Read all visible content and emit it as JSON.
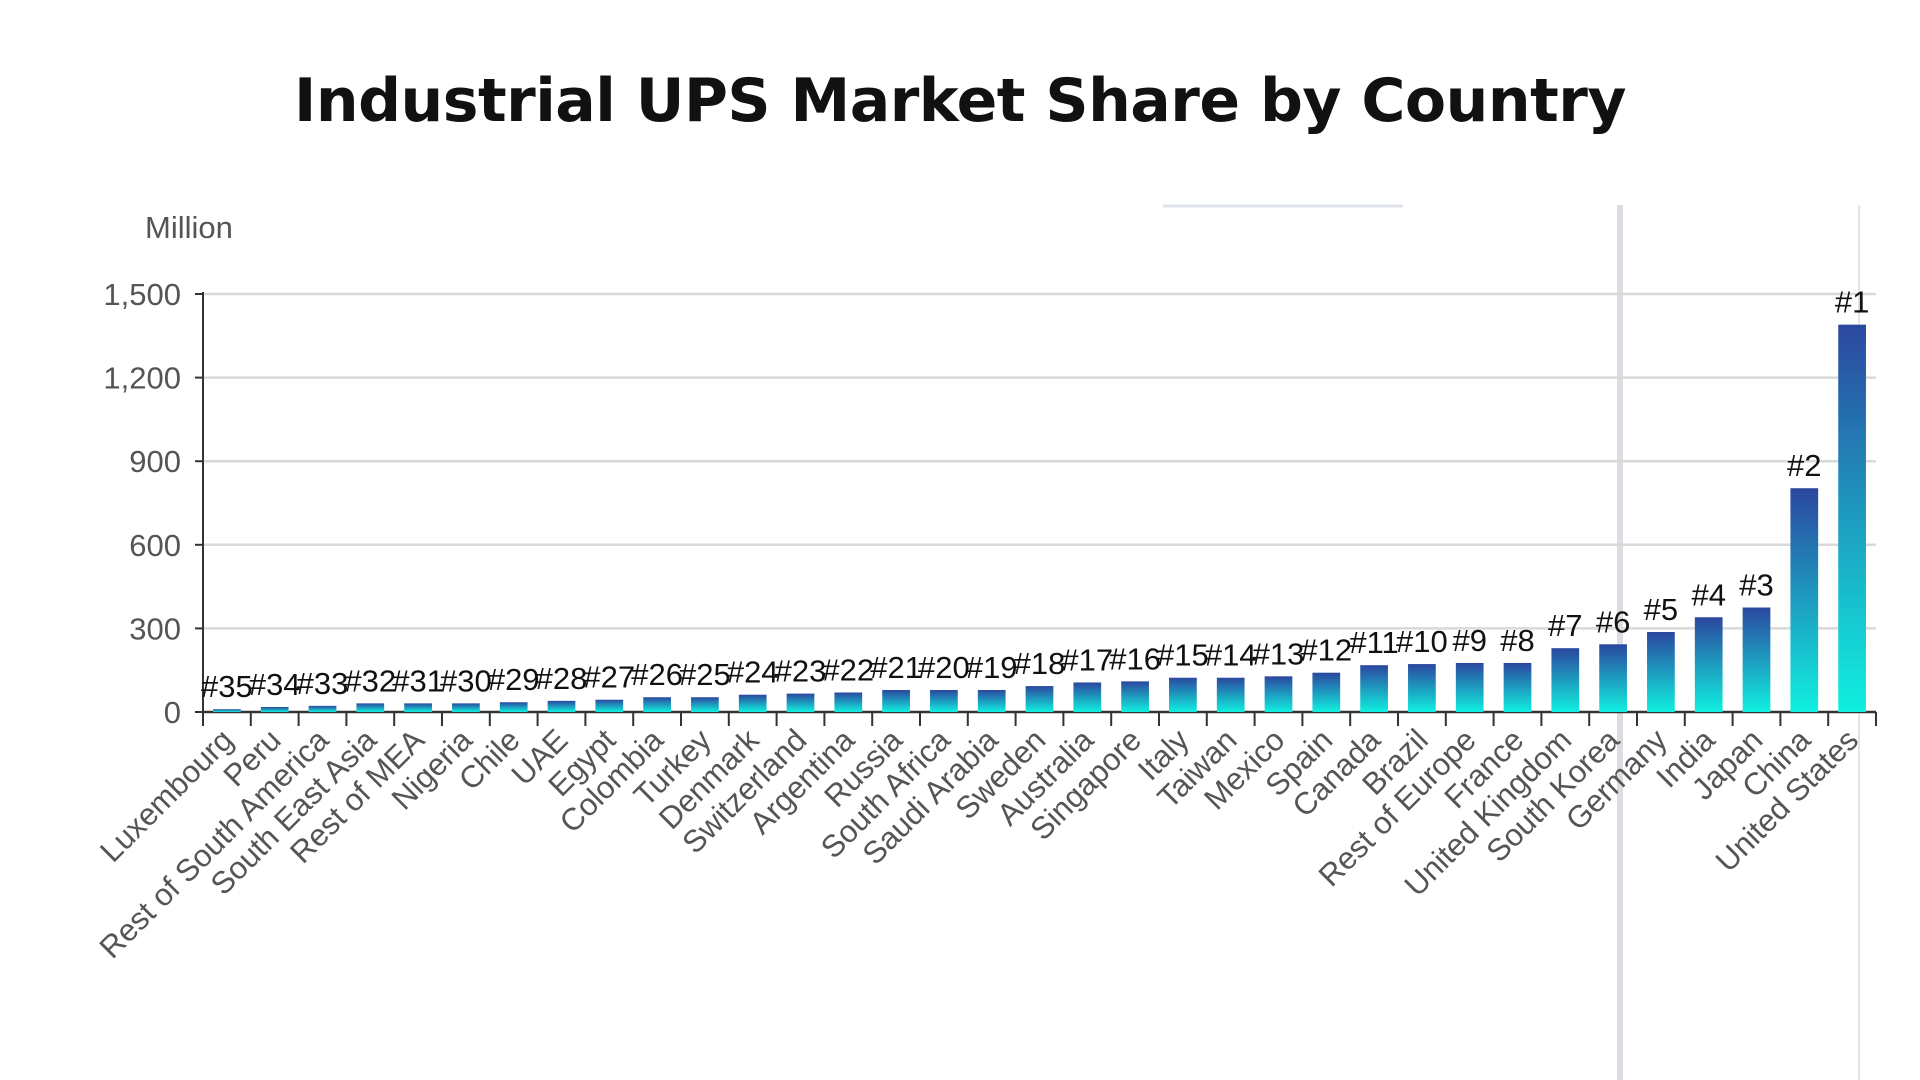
{
  "chart_data": {
    "type": "bar",
    "title": "Industrial UPS Market Share by Country",
    "ylabel": "Million",
    "xlabel": "",
    "ylim": [
      0,
      1500
    ],
    "yticks": [
      0,
      300,
      600,
      900,
      1200,
      1500
    ],
    "ytick_labels": [
      "0",
      "300",
      "600",
      "900",
      "1,200",
      "1,500"
    ],
    "grid": true,
    "categories": [
      "Luxembourg",
      "Peru",
      "Rest of South America",
      "South East Asia",
      "Rest of MEA",
      "Nigeria",
      "Chile",
      "UAE",
      "Egypt",
      "Colombia",
      "Turkey",
      "Denmark",
      "Switzerland",
      "Argentina",
      "Russia",
      "South Africa",
      "Saudi Arabia",
      "Sweden",
      "Australia",
      "Singapore",
      "Italy",
      "Taiwan",
      "Mexico",
      "Spain",
      "Canada",
      "Brazil",
      "Rest of Europe",
      "France",
      "United Kingdom",
      "South Korea",
      "Germany",
      "India",
      "Japan",
      "China",
      "United States"
    ],
    "values": [
      10,
      18,
      22,
      31,
      31,
      31,
      35,
      40,
      44,
      53,
      53,
      62,
      66,
      70,
      79,
      79,
      79,
      93,
      106,
      110,
      123,
      123,
      128,
      141,
      168,
      172,
      176,
      176,
      229,
      243,
      287,
      340,
      375,
      803,
      1390
    ],
    "data_labels": [
      "#35",
      "#34",
      "#33",
      "#32",
      "#31",
      "#30",
      "#29",
      "#28",
      "#27",
      "#26",
      "#25",
      "#24",
      "#23",
      "#22",
      "#21",
      "#20",
      "#19",
      "#18",
      "#17",
      "#16",
      "#15",
      "#14",
      "#13",
      "#12",
      "#11",
      "#10",
      "#9",
      "#8",
      "#7",
      "#6",
      "#5",
      "#4",
      "#3",
      "#2",
      "#1"
    ],
    "colors": {
      "bar_top": "#2b479f",
      "bar_bottom": "#10f0e0",
      "grid": "#d9d9d9",
      "axis": "#333333"
    }
  }
}
